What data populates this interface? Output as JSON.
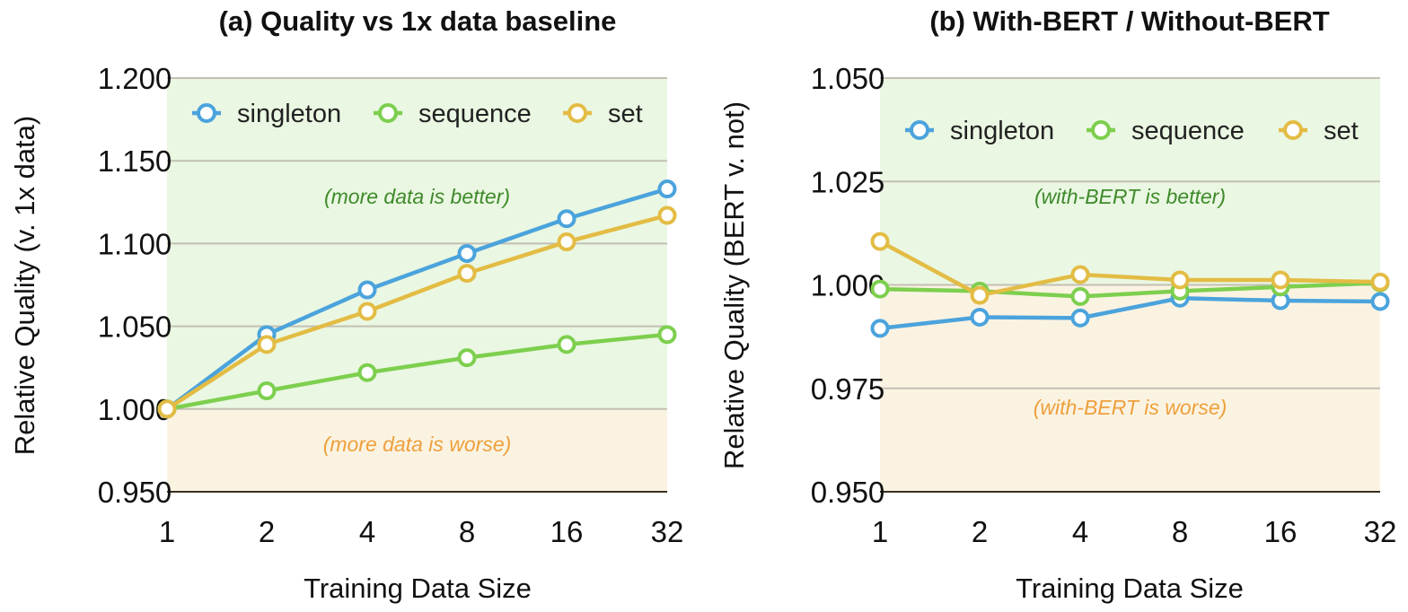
{
  "chart_data": [
    {
      "type": "line",
      "title": "(a) Quality vs 1x data baseline",
      "xlabel": "Training Data Size",
      "ylabel": "Relative Quality (v. 1x data)",
      "categories": [
        "1",
        "2",
        "4",
        "8",
        "16",
        "32"
      ],
      "ylim": [
        0.95,
        1.2
      ],
      "yticks": [
        "0.950",
        "1.000",
        "1.050",
        "1.100",
        "1.150",
        "1.200"
      ],
      "baseline": 1.0,
      "grid": true,
      "legend_position": "top",
      "annotations": {
        "better": "(more data is better)",
        "worse": "(more data is worse)"
      },
      "series": [
        {
          "name": "singleton",
          "color": "#4ba3dc",
          "values": [
            1.0,
            1.045,
            1.072,
            1.094,
            1.115,
            1.133
          ]
        },
        {
          "name": "sequence",
          "color": "#7dcf4e",
          "values": [
            1.0,
            1.011,
            1.022,
            1.031,
            1.039,
            1.045
          ]
        },
        {
          "name": "set",
          "color": "#e3bc44",
          "values": [
            1.0,
            1.039,
            1.059,
            1.082,
            1.101,
            1.117
          ]
        }
      ]
    },
    {
      "type": "line",
      "title": "(b) With-BERT / Without-BERT",
      "xlabel": "Training Data Size",
      "ylabel": "Relative Quality (BERT v. not)",
      "categories": [
        "1",
        "2",
        "4",
        "8",
        "16",
        "32"
      ],
      "ylim": [
        0.95,
        1.05
      ],
      "yticks": [
        "0.950",
        "0.975",
        "1.000",
        "1.025",
        "1.050"
      ],
      "baseline": 1.0,
      "grid": true,
      "legend_position": "top",
      "annotations": {
        "better": "(with-BERT is better)",
        "worse": "(with-BERT is worse)"
      },
      "series": [
        {
          "name": "singleton",
          "color": "#4ba3dc",
          "values": [
            0.9895,
            0.9922,
            0.992,
            0.9968,
            0.9962,
            0.996
          ]
        },
        {
          "name": "sequence",
          "color": "#7dcf4e",
          "values": [
            0.999,
            0.9985,
            0.9972,
            0.9985,
            0.9995,
            1.0005
          ]
        },
        {
          "name": "set",
          "color": "#e3bc44",
          "values": [
            1.0105,
            0.9975,
            1.0025,
            1.0012,
            1.0012,
            1.0007
          ]
        }
      ]
    }
  ],
  "colors": {
    "better_bg": "#eaf7e2",
    "worse_bg": "#fbf3e2",
    "grid": "#c2c0b4",
    "better_text": "#3e8a2a",
    "worse_text": "#eea03c"
  }
}
